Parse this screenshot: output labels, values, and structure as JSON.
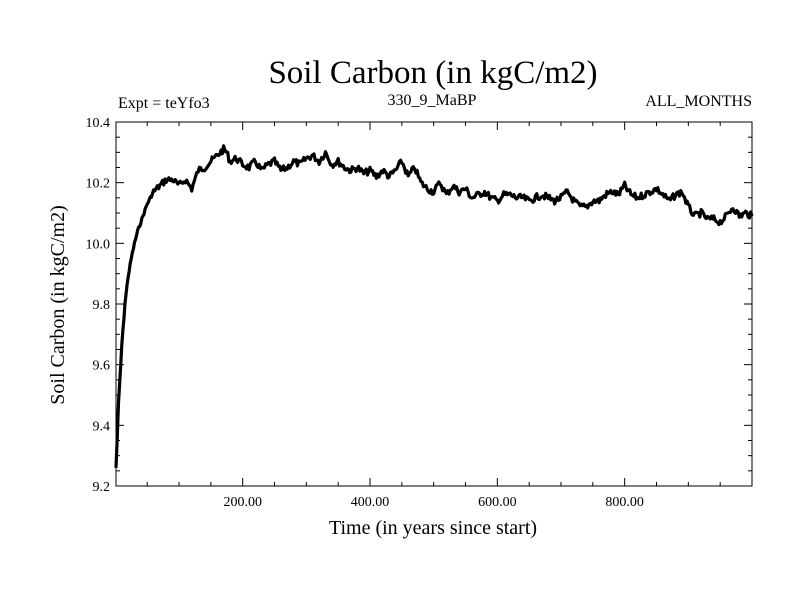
{
  "chart_data": {
    "type": "line",
    "title": "Soil Carbon (in kgC/m2)",
    "subtitle_left": "Expt = teYfo3",
    "subtitle_center": "330_9_MaBP",
    "subtitle_right": "ALL_MONTHS",
    "xlabel": "Time (in years since start)",
    "ylabel": "Soil Carbon (in kgC/m2)",
    "xlim": [
      1,
      1000
    ],
    "ylim": [
      9.2,
      10.4
    ],
    "x_ticks": [
      200,
      400,
      600,
      800
    ],
    "x_tick_labels": [
      "200.00",
      "400.00",
      "600.00",
      "800.00"
    ],
    "y_ticks": [
      9.2,
      9.4,
      9.6,
      9.8,
      10.0,
      10.2,
      10.4
    ],
    "y_tick_labels": [
      "9.2",
      "9.4",
      "9.6",
      "9.8",
      "10.0",
      "10.2",
      "10.4"
    ],
    "line_color": "#000000",
    "series": [
      {
        "name": "Soil Carbon",
        "x": [
          1,
          5,
          10,
          15,
          20,
          25,
          30,
          35,
          40,
          45,
          50,
          55,
          60,
          70,
          80,
          90,
          100,
          110,
          120,
          130,
          140,
          150,
          160,
          170,
          175,
          180,
          190,
          200,
          210,
          220,
          230,
          240,
          250,
          260,
          270,
          280,
          290,
          300,
          310,
          320,
          330,
          340,
          350,
          360,
          370,
          380,
          390,
          400,
          410,
          420,
          430,
          440,
          450,
          460,
          470,
          480,
          490,
          500,
          510,
          520,
          530,
          540,
          550,
          560,
          570,
          580,
          590,
          600,
          610,
          620,
          630,
          640,
          650,
          660,
          670,
          680,
          690,
          700,
          710,
          720,
          730,
          740,
          750,
          760,
          770,
          780,
          790,
          800,
          810,
          820,
          830,
          840,
          850,
          860,
          870,
          880,
          890,
          900,
          910,
          920,
          930,
          940,
          950,
          960,
          970,
          980,
          990,
          1000
        ],
        "values": [
          9.26,
          9.47,
          9.66,
          9.8,
          9.89,
          9.95,
          10.0,
          10.04,
          10.07,
          10.1,
          10.13,
          10.15,
          10.17,
          10.19,
          10.21,
          10.21,
          10.19,
          10.21,
          10.18,
          10.24,
          10.25,
          10.27,
          10.29,
          10.31,
          10.3,
          10.27,
          10.28,
          10.26,
          10.25,
          10.27,
          10.24,
          10.26,
          10.27,
          10.24,
          10.25,
          10.27,
          10.26,
          10.28,
          10.29,
          10.27,
          10.3,
          10.26,
          10.27,
          10.25,
          10.24,
          10.25,
          10.23,
          10.24,
          10.22,
          10.24,
          10.22,
          10.24,
          10.27,
          10.22,
          10.25,
          10.2,
          10.18,
          10.17,
          10.2,
          10.16,
          10.19,
          10.17,
          10.18,
          10.15,
          10.16,
          10.17,
          10.15,
          10.14,
          10.16,
          10.16,
          10.15,
          10.15,
          10.14,
          10.15,
          10.16,
          10.15,
          10.14,
          10.15,
          10.17,
          10.14,
          10.12,
          10.12,
          10.14,
          10.14,
          10.16,
          10.17,
          10.16,
          10.19,
          10.16,
          10.15,
          10.16,
          10.17,
          10.18,
          10.16,
          10.14,
          10.16,
          10.17,
          10.12,
          10.09,
          10.1,
          10.08,
          10.08,
          10.07,
          10.09,
          10.12,
          10.09,
          10.1,
          10.09
        ]
      }
    ]
  }
}
